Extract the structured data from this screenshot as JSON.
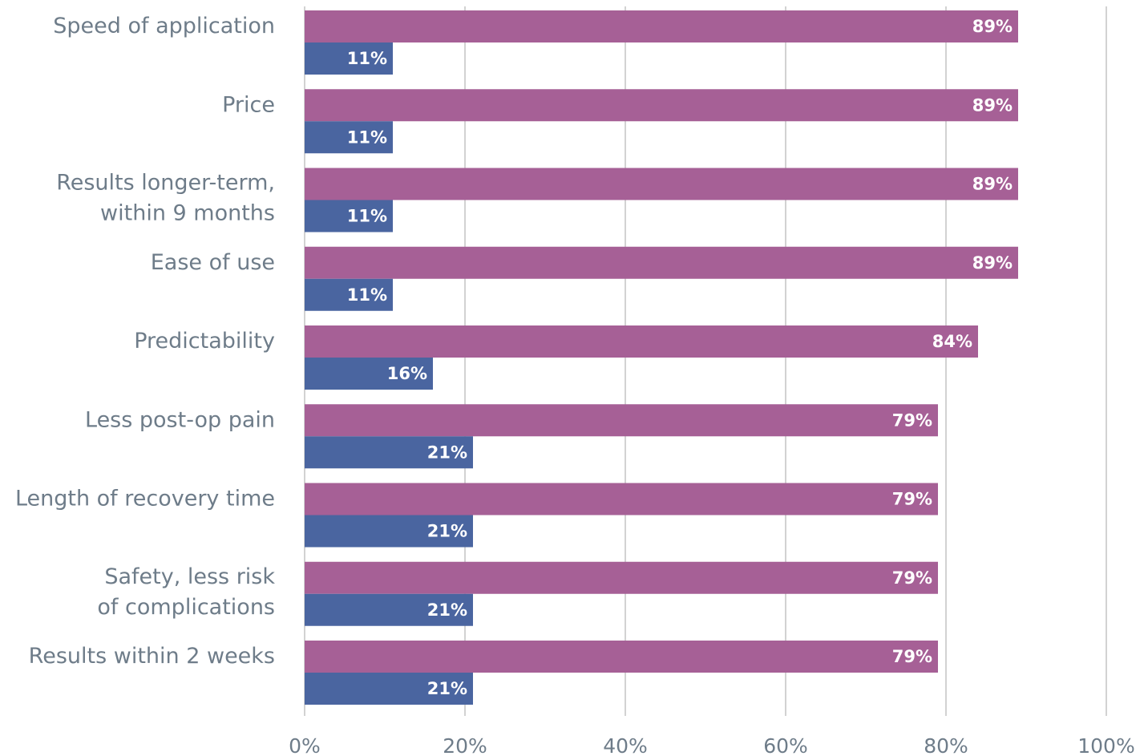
{
  "chart_data": {
    "type": "barh",
    "categories": [
      "Speed of application",
      "Price",
      "Results longer-term,\nwithin 9 months",
      "Ease of use",
      "Predictability",
      "Less post-op pain",
      "Length of recovery time",
      "Safety, less risk\nof complications",
      "Results within 2 weeks"
    ],
    "series": [
      {
        "color": "#a66096",
        "values": [
          89,
          89,
          89,
          89,
          84,
          79,
          79,
          79,
          79
        ],
        "value_labels": [
          "89%",
          "89%",
          "89%",
          "89%",
          "84%",
          "79%",
          "79%",
          "79%",
          "79%"
        ]
      },
      {
        "color": "#4a65a0",
        "values": [
          11,
          11,
          11,
          11,
          16,
          21,
          21,
          21,
          21
        ],
        "value_labels": [
          "11%",
          "11%",
          "11%",
          "11%",
          "16%",
          "21%",
          "21%",
          "21%",
          "21%"
        ]
      }
    ],
    "xlim": [
      0,
      100
    ],
    "xticks": [
      {
        "value": 0,
        "label": "0%"
      },
      {
        "value": 20,
        "label": "20%"
      },
      {
        "value": 40,
        "label": "40%"
      },
      {
        "value": 60,
        "label": "60%"
      },
      {
        "value": 80,
        "label": "80%"
      },
      {
        "value": 100,
        "label": "100%"
      }
    ],
    "grid": true
  }
}
